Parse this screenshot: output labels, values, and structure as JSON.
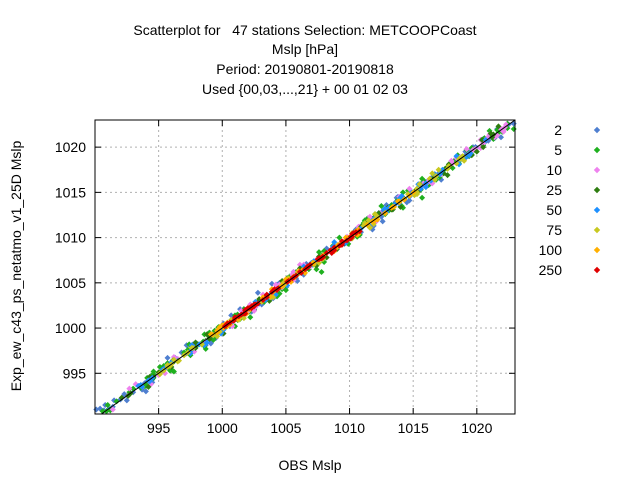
{
  "chart_data": {
    "type": "scatter",
    "title_lines": [
      "Scatterplot for   47 stations Selection: METCOOPCoast",
      "Mslp [hPa]",
      "Period: 20190801-20190818",
      "Used {00,03,...,21} + 00 01 02 03"
    ],
    "xlabel": "OBS Mslp",
    "ylabel": "Exp_ew_c43_ps_netatmo_v1_25D Mslp",
    "xlim": [
      990,
      1023
    ],
    "ylim": [
      990.5,
      1023
    ],
    "xticks": [
      995,
      1000,
      1005,
      1010,
      1015,
      1020
    ],
    "yticks": [
      995,
      1000,
      1005,
      1010,
      1015,
      1020
    ],
    "grid": true,
    "reference_line": "y = x",
    "legend_position": "right",
    "series": [
      {
        "name": "2",
        "color": "#4f7fd0",
        "span": [
          990,
          1023
        ],
        "spread": 1.0,
        "values": []
      },
      {
        "name": "5",
        "color": "#1fb01f",
        "span": [
          990,
          1023
        ],
        "spread": 1.1,
        "values": []
      },
      {
        "name": "10",
        "color": "#ee82ee",
        "span": [
          990,
          1023
        ],
        "spread": 0.8,
        "values": []
      },
      {
        "name": "25",
        "color": "#2e7d10",
        "span": [
          991,
          1022
        ],
        "spread": 0.7,
        "values": []
      },
      {
        "name": "50",
        "color": "#1e90ff",
        "span": [
          992,
          1021
        ],
        "spread": 0.6,
        "values": []
      },
      {
        "name": "75",
        "color": "#c8c820",
        "span": [
          995,
          1019
        ],
        "spread": 0.5,
        "values": []
      },
      {
        "name": "100",
        "color": "#ffb000",
        "span": [
          999,
          1015
        ],
        "spread": 0.4,
        "values": []
      },
      {
        "name": "250",
        "color": "#e00000",
        "span": [
          1000,
          1011
        ],
        "spread": 0.25,
        "values": []
      }
    ]
  }
}
